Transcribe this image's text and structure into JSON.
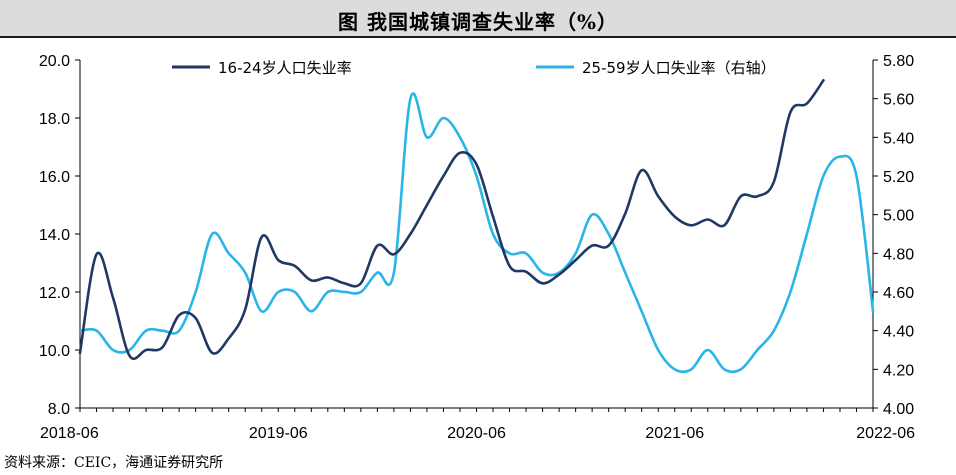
{
  "title": "图    我国城镇调查失业率（%）",
  "source": "资料来源：CEIC，海通证券研究所",
  "chart_data": {
    "type": "line",
    "title": "我国城镇调查失业率（%）",
    "x": [
      "2018-06",
      "2018-07",
      "2018-08",
      "2018-09",
      "2018-10",
      "2018-11",
      "2018-12",
      "2019-01",
      "2019-02",
      "2019-03",
      "2019-04",
      "2019-05",
      "2019-06",
      "2019-07",
      "2019-08",
      "2019-09",
      "2019-10",
      "2019-11",
      "2019-12",
      "2020-01",
      "2020-02",
      "2020-03",
      "2020-04",
      "2020-05",
      "2020-06",
      "2020-07",
      "2020-08",
      "2020-09",
      "2020-10",
      "2020-11",
      "2020-12",
      "2021-01",
      "2021-02",
      "2021-03",
      "2021-04",
      "2021-05",
      "2021-06",
      "2021-07",
      "2021-08",
      "2021-09",
      "2021-10",
      "2021-11",
      "2021-12",
      "2022-01",
      "2022-02",
      "2022-03",
      "2022-04",
      "2022-05",
      "2022-06"
    ],
    "x_tick_labels": [
      "2018-06",
      "2019-06",
      "2020-06",
      "2021-06",
      "2022-06"
    ],
    "series": [
      {
        "name": "16-24岁人口失业率",
        "axis": "left",
        "color": "#1f3864",
        "values": [
          9.9,
          13.3,
          11.8,
          9.8,
          10.0,
          10.1,
          11.2,
          11.1,
          9.9,
          10.4,
          11.4,
          13.9,
          13.1,
          12.9,
          12.4,
          12.5,
          12.3,
          12.3,
          13.6,
          13.3,
          14.0,
          15.0,
          16.0,
          16.8,
          16.4,
          14.6,
          12.9,
          12.7,
          12.3,
          12.6,
          13.1,
          13.6,
          13.6,
          14.7,
          16.2,
          15.3,
          14.6,
          14.3,
          14.5,
          14.3,
          15.3,
          15.3,
          15.8,
          18.2,
          18.5,
          19.3,
          null,
          null,
          null
        ]
      },
      {
        "name": "25-59岁人口失业率（右轴）",
        "axis": "right",
        "color": "#29b5e8",
        "values": [
          4.4,
          4.4,
          4.3,
          4.3,
          4.4,
          4.4,
          4.4,
          4.6,
          4.9,
          4.8,
          4.7,
          4.5,
          4.6,
          4.6,
          4.5,
          4.6,
          4.6,
          4.6,
          4.7,
          4.7,
          5.6,
          5.4,
          5.5,
          5.4,
          5.2,
          4.9,
          4.8,
          4.8,
          4.7,
          4.7,
          4.8,
          5.0,
          4.9,
          4.7,
          4.5,
          4.3,
          4.2,
          4.2,
          4.3,
          4.2,
          4.2,
          4.3,
          4.4,
          4.6,
          4.9,
          5.2,
          5.3,
          5.2,
          4.5
        ]
      }
    ],
    "y_left": {
      "min": 8.0,
      "max": 20.0,
      "step": 2.0,
      "tick_labels": [
        "8.0",
        "10.0",
        "12.0",
        "14.0",
        "16.0",
        "18.0",
        "20.0"
      ]
    },
    "y_right": {
      "min": 4.0,
      "max": 5.8,
      "step": 0.2,
      "tick_labels": [
        "4.00",
        "4.20",
        "4.40",
        "4.60",
        "4.80",
        "5.00",
        "5.20",
        "5.40",
        "5.60",
        "5.80"
      ]
    },
    "grid": false,
    "legend_position": "top"
  }
}
